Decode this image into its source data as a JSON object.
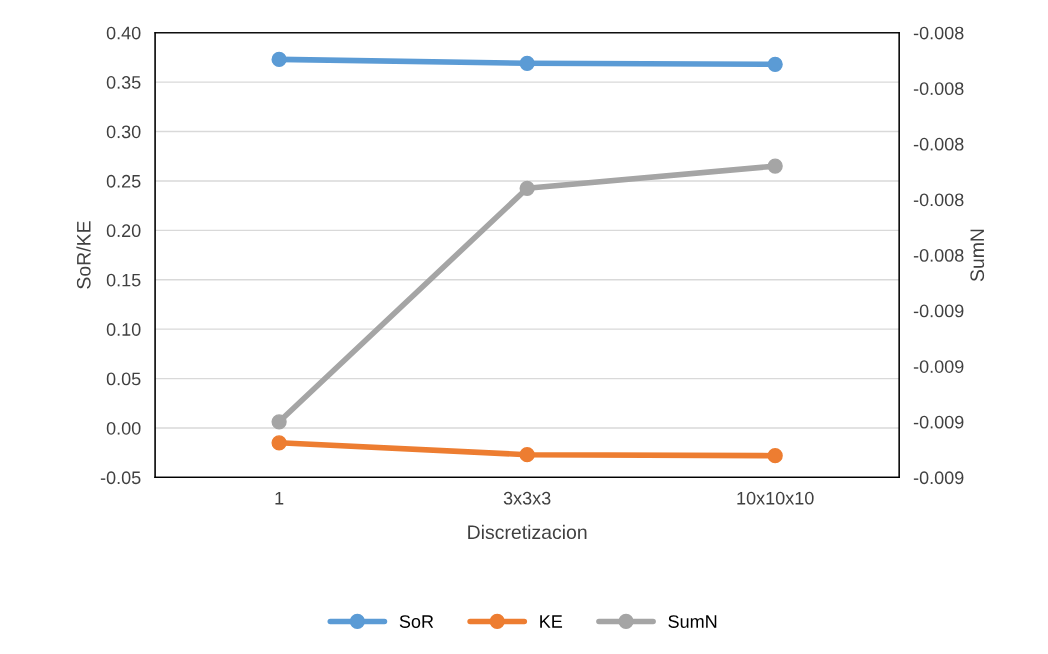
{
  "chart_data": {
    "type": "line",
    "xlabel": "Discretizacion",
    "ylabel": "SoR/KE",
    "y2label": "SumN",
    "categories": [
      "1",
      "3x3x3",
      "10x10x10"
    ],
    "series": [
      {
        "name": "SoR",
        "color": "#5b9bd5",
        "values": [
          0.373,
          0.369,
          0.368
        ]
      },
      {
        "name": "KE",
        "color": "#ed7d31",
        "values": [
          -0.015,
          -0.027,
          -0.028
        ]
      },
      {
        "name": "SumN",
        "color": "#a5a5a5",
        "values": [
          -0.009,
          -0.00816,
          -0.00808
        ],
        "axis": "y2"
      }
    ],
    "ylim": [
      -0.05,
      0.4
    ],
    "yticks": [
      {
        "value": -0.05,
        "label": "-0.05"
      },
      {
        "value": 0,
        "label": "0.00"
      },
      {
        "value": 0.05,
        "label": "0.05"
      },
      {
        "value": 0.1,
        "label": "0.10"
      },
      {
        "value": 0.15,
        "label": "0.15"
      },
      {
        "value": 0.2,
        "label": "0.20"
      },
      {
        "value": 0.25,
        "label": "0.25"
      },
      {
        "value": 0.3,
        "label": "0.30"
      },
      {
        "value": 0.35,
        "label": "0.35"
      },
      {
        "value": 0.4,
        "label": "0.40"
      }
    ],
    "y2lim": [
      -0.0092,
      -0.0076
    ],
    "y2ticks": [
      {
        "value": -0.0092,
        "label": "-0.009"
      },
      {
        "value": -0.009,
        "label": "-0.009"
      },
      {
        "value": -0.0088,
        "label": "-0.009"
      },
      {
        "value": -0.0086,
        "label": "-0.009"
      },
      {
        "value": -0.0084,
        "label": "-0.008"
      },
      {
        "value": -0.0082,
        "label": "-0.008"
      },
      {
        "value": -0.008,
        "label": "-0.008"
      },
      {
        "value": -0.0078,
        "label": "-0.008"
      },
      {
        "value": -0.0076,
        "label": "-0.008"
      }
    ],
    "grid": "y",
    "legend": "bottom",
    "marker": "circle",
    "line_style": "solid"
  }
}
